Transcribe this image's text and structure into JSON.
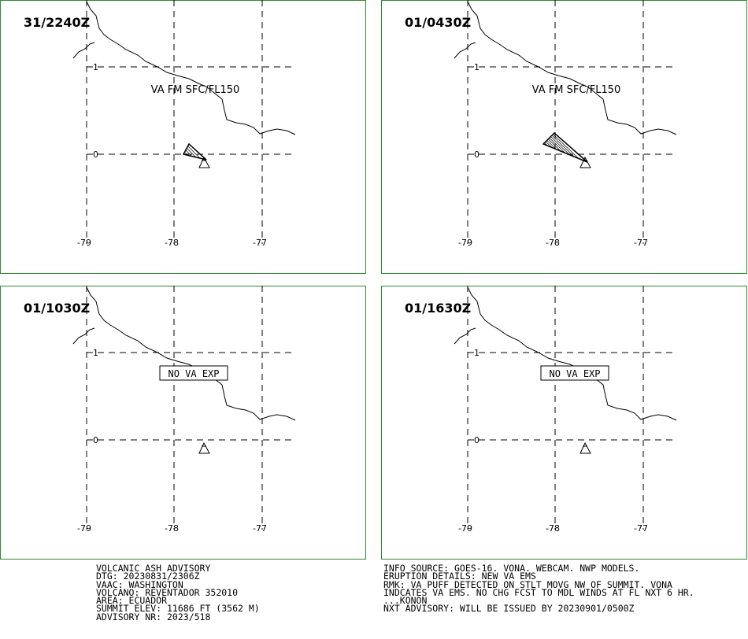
{
  "panels": [
    {
      "time": "31/2240Z",
      "annotation": "VA FM SFC/FL150"
    },
    {
      "time": "01/0430Z",
      "annotation": "VA FM SFC/FL150"
    },
    {
      "time": "01/1030Z",
      "annotation": "NO VA EXP"
    },
    {
      "time": "01/1630Z",
      "annotation": "NO VA EXP"
    }
  ],
  "grid_labels": {
    "lat": [
      "1",
      "0"
    ],
    "lon": [
      "-79",
      "-78",
      "-77"
    ]
  },
  "advisory": [
    "VOLCANIC ASH ADVISORY",
    "DTG: 20230831/2306Z",
    "VAAC: WASHINGTON",
    "VOLCANO: REVENTADOR 352010",
    "AREA: ECUADOR",
    "SUMMIT ELEV: 11686 FT (3562 M)",
    "ADVISORY NR: 2023/518"
  ],
  "remarks": [
    "INFO SOURCE: GOES-16. VONA. WEBCAM. NWP MODELS.",
    "ERUPTION DETAILS: NEW VA EMS",
    "RMK: VA PUFF DETECTED ON STLT MOVG NW OF SUMMIT. VONA",
    "INDCATES VA EMS. NO CHG FCST TO MDL WINDS AT FL NXT 6 HR.",
    "...KONON",
    "NXT ADVISORY: WILL BE ISSUED BY 20230901/0500Z"
  ]
}
